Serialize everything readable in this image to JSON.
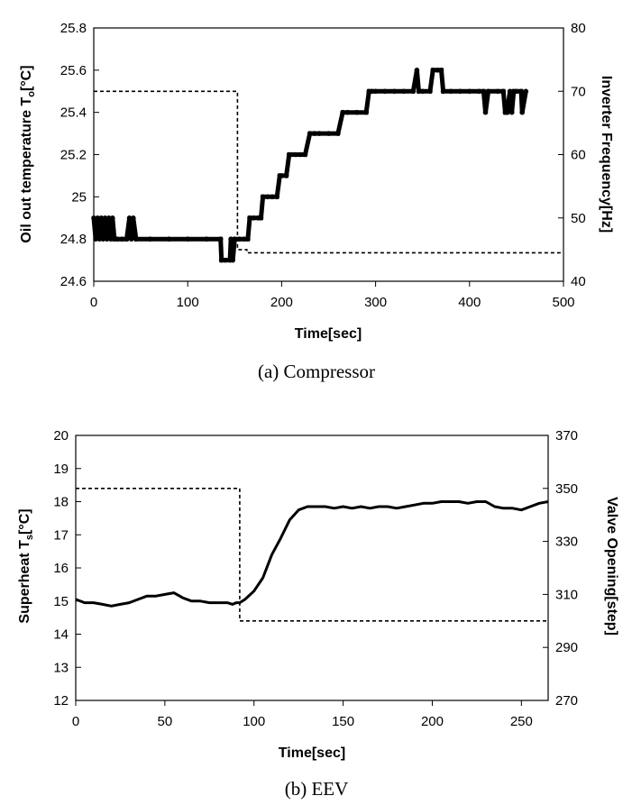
{
  "chart_data": [
    {
      "type": "line",
      "caption": "(a)  Compressor",
      "xlabel": "Time[sec]",
      "ylabel": "Oil out temperature T",
      "ylabel_sub": "o",
      "ylabel_tail": "[°C]",
      "y2label": "Inverter Frequency[Hz]",
      "xlim": [
        0,
        500
      ],
      "ylim": [
        24.6,
        25.8
      ],
      "y2lim": [
        40,
        80
      ],
      "xticks": [
        0,
        100,
        200,
        300,
        400,
        500
      ],
      "yticks": [
        "24.6",
        "24.8",
        "25",
        "25.2",
        "25.4",
        "25.6",
        "25.8"
      ],
      "y2ticks": [
        "40",
        "50",
        "60",
        "70",
        "80"
      ],
      "grid": false,
      "series": [
        {
          "axis": "left",
          "style": "solid-with-markers",
          "x": [
            0,
            2,
            4,
            6,
            8,
            10,
            12,
            14,
            16,
            18,
            20,
            22,
            25,
            30,
            35,
            38,
            40,
            42,
            45,
            60,
            80,
            100,
            120,
            135,
            136,
            140,
            145,
            146,
            148,
            150,
            155,
            160,
            164,
            166,
            170,
            175,
            178,
            180,
            185,
            190,
            195,
            198,
            200,
            205,
            208,
            210,
            215,
            220,
            225,
            230,
            235,
            240,
            250,
            260,
            265,
            270,
            280,
            290,
            293,
            296,
            300,
            310,
            320,
            330,
            340,
            344,
            346,
            350,
            358,
            361,
            366,
            370,
            372,
            380,
            390,
            400,
            410,
            415,
            417,
            420,
            430,
            436,
            438,
            440,
            443,
            445,
            447,
            450,
            455,
            456,
            460
          ],
          "y": [
            24.9,
            24.8,
            24.9,
            24.8,
            24.9,
            24.8,
            24.9,
            24.8,
            24.9,
            24.8,
            24.9,
            24.8,
            24.8,
            24.8,
            24.8,
            24.9,
            24.8,
            24.9,
            24.8,
            24.8,
            24.8,
            24.8,
            24.8,
            24.8,
            24.7,
            24.7,
            24.7,
            24.8,
            24.7,
            24.8,
            24.8,
            24.8,
            24.8,
            24.9,
            24.9,
            24.9,
            24.9,
            25.0,
            25.0,
            25.0,
            25.0,
            25.1,
            25.1,
            25.1,
            25.2,
            25.2,
            25.2,
            25.2,
            25.2,
            25.3,
            25.3,
            25.3,
            25.3,
            25.3,
            25.4,
            25.4,
            25.4,
            25.4,
            25.5,
            25.5,
            25.5,
            25.5,
            25.5,
            25.5,
            25.5,
            25.6,
            25.5,
            25.5,
            25.5,
            25.6,
            25.6,
            25.6,
            25.5,
            25.5,
            25.5,
            25.5,
            25.5,
            25.5,
            25.4,
            25.5,
            25.5,
            25.5,
            25.4,
            25.4,
            25.5,
            25.4,
            25.5,
            25.5,
            25.5,
            25.4,
            25.5
          ]
        },
        {
          "axis": "right",
          "style": "dashed",
          "x": [
            0,
            153,
            153,
            163,
            163,
            500
          ],
          "y": [
            70,
            70,
            45,
            45,
            44.5,
            44.5
          ]
        }
      ]
    },
    {
      "type": "line",
      "caption": "(b)  EEV",
      "xlabel": "Time[sec]",
      "ylabel": "Superheat T",
      "ylabel_sub": "s",
      "ylabel_tail": "[°C]",
      "y2label": "Valve Opening[step]",
      "xlim": [
        0,
        265
      ],
      "ylim": [
        12,
        20
      ],
      "y2lim": [
        270,
        370
      ],
      "xticks": [
        0,
        50,
        100,
        150,
        200,
        250
      ],
      "yticks": [
        "12",
        "13",
        "14",
        "15",
        "16",
        "17",
        "18",
        "19",
        "20"
      ],
      "y2ticks": [
        "270",
        "290",
        "310",
        "330",
        "350",
        "370"
      ],
      "grid": false,
      "series": [
        {
          "axis": "left",
          "style": "solid",
          "x": [
            0,
            5,
            10,
            15,
            20,
            25,
            30,
            35,
            40,
            45,
            50,
            55,
            60,
            65,
            70,
            75,
            80,
            85,
            88,
            90,
            92,
            95,
            100,
            105,
            110,
            115,
            120,
            125,
            130,
            135,
            140,
            145,
            150,
            155,
            160,
            165,
            170,
            175,
            180,
            185,
            190,
            195,
            200,
            205,
            210,
            215,
            220,
            225,
            230,
            235,
            240,
            245,
            250,
            255,
            260,
            265
          ],
          "y": [
            15.05,
            14.95,
            14.95,
            14.9,
            14.85,
            14.9,
            14.95,
            15.05,
            15.15,
            15.15,
            15.2,
            15.25,
            15.1,
            15.0,
            15.0,
            14.95,
            14.95,
            14.95,
            14.9,
            14.95,
            14.95,
            15.05,
            15.3,
            15.7,
            16.4,
            16.9,
            17.45,
            17.75,
            17.85,
            17.85,
            17.85,
            17.8,
            17.85,
            17.8,
            17.85,
            17.8,
            17.85,
            17.85,
            17.8,
            17.85,
            17.9,
            17.95,
            17.95,
            18.0,
            18.0,
            18.0,
            17.95,
            18.0,
            18.0,
            17.85,
            17.8,
            17.8,
            17.75,
            17.85,
            17.95,
            18.0
          ]
        },
        {
          "axis": "right",
          "style": "dashed",
          "x": [
            0,
            92,
            92,
            265
          ],
          "y": [
            350,
            350,
            300,
            300
          ]
        }
      ]
    }
  ]
}
